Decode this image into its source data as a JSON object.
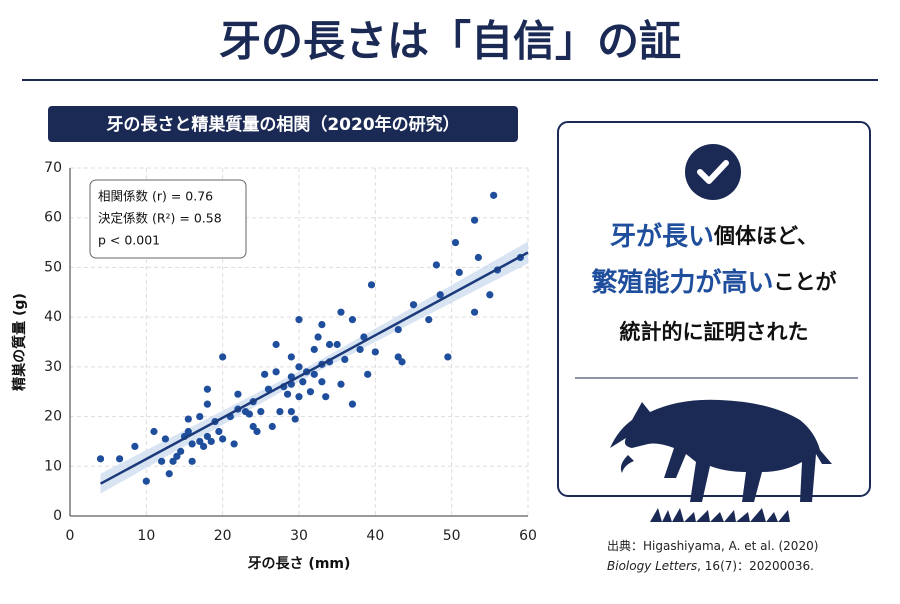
{
  "header": {
    "title": "牙の長さは「自信」の証"
  },
  "chart_data": {
    "type": "scatter",
    "title": "牙の長さと精巣質量の相関（2020年の研究）",
    "x_label": "牙の長さ (mm)",
    "y_label": "精巣の質量 (g)",
    "xlim": [
      0,
      60
    ],
    "ylim": [
      0,
      70
    ],
    "xticks": [
      0,
      10,
      20,
      30,
      40,
      50,
      60
    ],
    "yticks": [
      0,
      10,
      20,
      30,
      40,
      50,
      60,
      70
    ],
    "grid": true,
    "color": "#1f4e9c",
    "x": [
      4,
      6.5,
      8.5,
      10,
      11,
      12,
      12.5,
      13,
      13.5,
      14,
      14.5,
      15,
      15.5,
      15.5,
      16,
      16,
      17,
      17,
      17.5,
      18,
      18,
      18,
      18.5,
      19,
      19.5,
      20,
      20,
      21,
      21.5,
      22,
      22,
      23,
      23.5,
      24,
      24,
      24.5,
      25,
      25.5,
      26,
      26.5,
      27,
      27,
      27.5,
      28,
      28.5,
      29,
      29,
      29,
      29,
      29.5,
      30,
      30,
      30,
      30.5,
      31,
      31.5,
      32,
      32,
      32.5,
      33,
      33,
      33,
      33.5,
      34,
      34,
      35,
      35.5,
      35.5,
      36,
      37,
      37,
      38,
      38.5,
      39,
      39.5,
      40,
      43,
      43,
      43.5,
      45,
      47,
      48,
      48.5,
      49.5,
      50.5,
      51,
      53,
      53,
      53.5,
      55,
      55.5,
      56,
      59
    ],
    "values": [
      11.5,
      11.5,
      14,
      7,
      17,
      11,
      15.5,
      8.5,
      11,
      12,
      13,
      16,
      19.5,
      17,
      11,
      14.5,
      20,
      15,
      14,
      25.5,
      16,
      22.5,
      15,
      19,
      17,
      32,
      15.5,
      20,
      14.5,
      24.5,
      21.5,
      21,
      20.5,
      23,
      18,
      17,
      21,
      28.5,
      25.5,
      18,
      34.5,
      29,
      21,
      26,
      24.5,
      32,
      28,
      26.5,
      21,
      19.5,
      39.5,
      30,
      24,
      27,
      29,
      25,
      33.5,
      28.5,
      36,
      38.5,
      30.5,
      27,
      24,
      34.5,
      31,
      34.5,
      41,
      26.5,
      31.5,
      39.5,
      22.5,
      33.5,
      36,
      28.5,
      46.5,
      33,
      32,
      37.5,
      31,
      42.5,
      39.5,
      50.5,
      44.5,
      32,
      55,
      49,
      41,
      59.5,
      52,
      44.5,
      64.5,
      49.5,
      52
    ],
    "fit": {
      "color": "#1b3a7a",
      "band_color": "#c9d8ee",
      "x": [
        4,
        32,
        60
      ],
      "values": [
        6.5,
        29.7,
        53
      ],
      "lower": [
        4.5,
        28.7,
        50.8
      ],
      "upper": [
        8.5,
        30.7,
        55.2
      ]
    },
    "annotations": [
      "相関係数 (r) = 0.76",
      "決定係数 (R²) = 0.58",
      "p < 0.001"
    ]
  },
  "panel": {
    "lines": [
      [
        {
          "text": "牙が長い",
          "em": true
        },
        {
          "text": "個体ほど、",
          "em": false
        }
      ],
      [
        {
          "text": "繁殖能力が高い",
          "em": true
        },
        {
          "text": "ことが",
          "em": false
        }
      ],
      [
        {
          "text": "統計的に証明された",
          "em": false
        }
      ]
    ]
  },
  "source": {
    "line1": "出典：Higashiyama, A. et al. (2020)",
    "journal": "Biology Letters",
    "rest": ", 16(7)：20200036."
  }
}
